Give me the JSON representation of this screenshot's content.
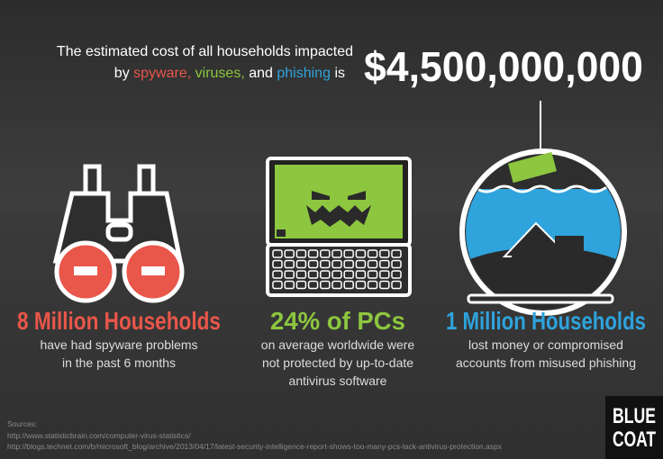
{
  "header": {
    "line1": "The estimated cost of all households impacted",
    "line2": [
      "by",
      "spyware,",
      "viruses,",
      "and",
      "phishing",
      "is"
    ],
    "amount": "$4,500,000,000"
  },
  "panels": [
    {
      "title": "8 Million Households",
      "lines": [
        "have had spyware  problems",
        "in the past 6 months"
      ]
    },
    {
      "title": "24% of PCs",
      "lines": [
        "on average worldwide were",
        "not protected by up-to-date",
        "antivirus software"
      ]
    },
    {
      "title": "1 Million Households",
      "lines": [
        "lost money or compromised",
        "accounts from misused phishing"
      ]
    }
  ],
  "sources": {
    "label": "Sources:",
    "links": [
      "http://www.statisticbrain.com/computer-virus-statistics/",
      "http://blogs.technet.com/b/microsoft_blog/archive/2013/04/17/latest-security-intelligence-report-shows-too-many-pcs-lack-antivirus-protection.aspx"
    ]
  },
  "logo": [
    "BLUE",
    "COAT"
  ]
}
